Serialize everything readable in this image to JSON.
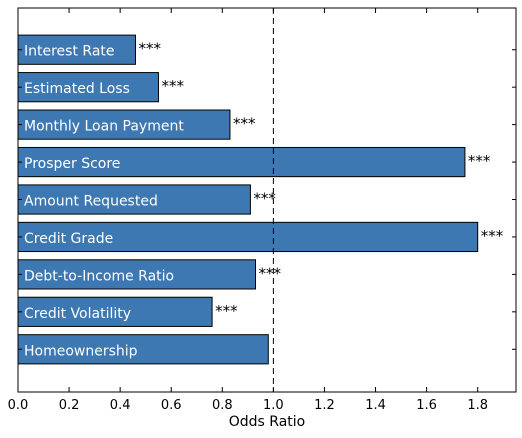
{
  "chart_data": {
    "type": "bar",
    "orientation": "horizontal",
    "categories": [
      "Interest Rate",
      "Estimated Loss",
      "Monthly Loan Payment",
      "Prosper Score",
      "Amount Requested",
      "Credit Grade",
      "Debt-to-Income Ratio",
      "Credit Volatility",
      "Homeownership"
    ],
    "values": [
      0.46,
      0.55,
      0.83,
      1.75,
      0.91,
      1.8,
      0.93,
      0.76,
      0.98
    ],
    "significance": [
      "***",
      "***",
      "***",
      "***",
      "***",
      "***",
      "***",
      "***",
      ""
    ],
    "xlabel": "Odds Ratio",
    "ylabel": "",
    "title": "",
    "xlim": [
      0.0,
      1.95
    ],
    "xticks": [
      0.0,
      0.2,
      0.4,
      0.6,
      0.8,
      1.0,
      1.2,
      1.4,
      1.6,
      1.8
    ],
    "xtick_labels": [
      "0.0",
      "0.2",
      "0.4",
      "0.6",
      "0.8",
      "1.0",
      "1.2",
      "1.4",
      "1.6",
      "1.8"
    ],
    "reference_line": 1.0,
    "reference_line_style": "dashed",
    "bar_color": "#3d78b2",
    "grid": false,
    "legend": "none"
  }
}
